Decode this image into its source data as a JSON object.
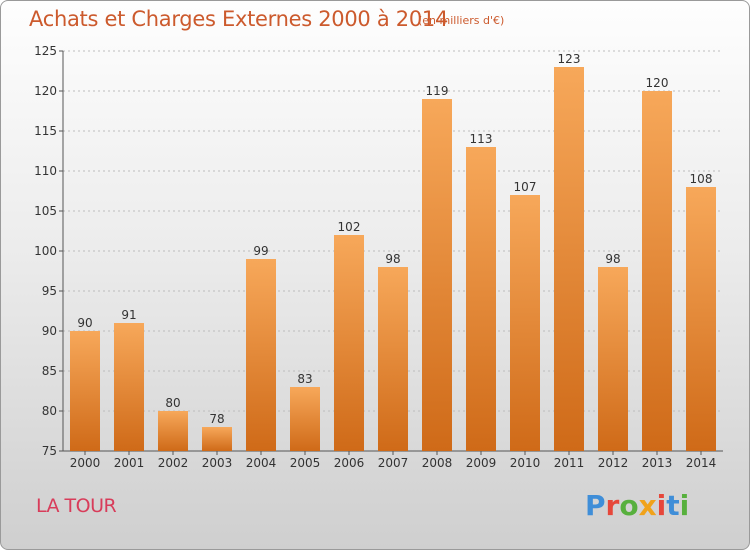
{
  "header": {
    "title": "Achats et Charges Externes 2000 à 2014",
    "subtitle": "(en milliers d'€)"
  },
  "place_label": "LA TOUR",
  "logo": {
    "text": "Proxiti",
    "letter_colors": [
      "#3f8ed8",
      "#e6473a",
      "#57b03d",
      "#f0a21a",
      "#e6473a",
      "#3f8ed8",
      "#57b03d"
    ]
  },
  "colors": {
    "bar_top": "#f7a85a",
    "bar_bottom": "#cf6a18",
    "axis": "#555555",
    "grid": "#bdbdbd"
  },
  "chart_data": {
    "type": "bar",
    "categories": [
      "2000",
      "2001",
      "2002",
      "2003",
      "2004",
      "2005",
      "2006",
      "2007",
      "2008",
      "2009",
      "2010",
      "2011",
      "2012",
      "2013",
      "2014"
    ],
    "values": [
      90,
      91,
      80,
      78,
      99,
      83,
      102,
      98,
      119,
      113,
      107,
      123,
      98,
      120,
      108
    ],
    "title": "Achats et Charges Externes 2000 à 2014",
    "xlabel": "",
    "ylabel": "",
    "ylim": [
      75,
      125
    ],
    "yticks": [
      75,
      80,
      85,
      90,
      95,
      100,
      105,
      110,
      115,
      120,
      125
    ],
    "grid": true,
    "data_labels": true
  }
}
